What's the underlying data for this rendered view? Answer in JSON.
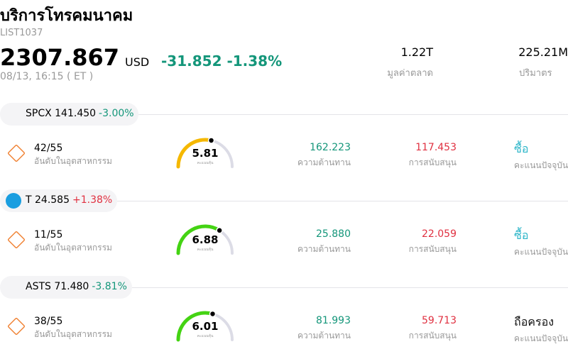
{
  "header": {
    "title": "บริการโทรคมนาคม",
    "code": "LIST1037",
    "price": "2307.867",
    "currency": "USD",
    "change": "-31.852 -1.38%",
    "change_color": "#14967a",
    "time": "08/13, 16:15  ( ET )",
    "market_cap": "1.22T",
    "market_cap_label": "มูลค่าตลาด",
    "volume": "225.21M",
    "volume_label": "ปริมาตร"
  },
  "rows": [
    {
      "ticker": "SPCX 141.450",
      "change": "-3.00%",
      "change_color": "#14967a",
      "rank": "42/55",
      "rank_label": "อันดับในอุตสาหกรรม",
      "score": "5.81",
      "score_label": "คะแนนหุ้น",
      "resistance": "162.223",
      "resistance_label": "ความต้านทาน",
      "support": "117.453",
      "support_label": "การสนับสนุน",
      "rating": "ซื้อ",
      "rating_color": "#2bb5c8",
      "rating_label": "คะแนนปัจจุบัน"
    },
    {
      "ticker": "T 24.585",
      "change": "+1.38%",
      "change_color": "#e03040",
      "rank": "11/55",
      "rank_label": "อันดับในอุตสาหกรรม",
      "score": "6.88",
      "score_label": "คะแนนหุ้น",
      "resistance": "25.880",
      "resistance_label": "ความต้านทาน",
      "support": "22.059",
      "support_label": "การสนับสนุน",
      "rating": "ซื้อ",
      "rating_color": "#2bb5c8",
      "rating_label": "คะแนนปัจจุบัน"
    },
    {
      "ticker": "ASTS 71.480",
      "change": "-3.81%",
      "change_color": "#14967a",
      "rank": "38/55",
      "rank_label": "อันดับในอุตสาหกรรม",
      "score": "6.01",
      "score_label": "คะแนนหุ้น",
      "resistance": "81.993",
      "resistance_label": "ความต้านทาน",
      "support": "59.713",
      "support_label": "การสนับสนุน",
      "rating": "ถือครอง",
      "rating_color": "#111111",
      "rating_label": "คะแนนปัจจุบัน"
    }
  ]
}
